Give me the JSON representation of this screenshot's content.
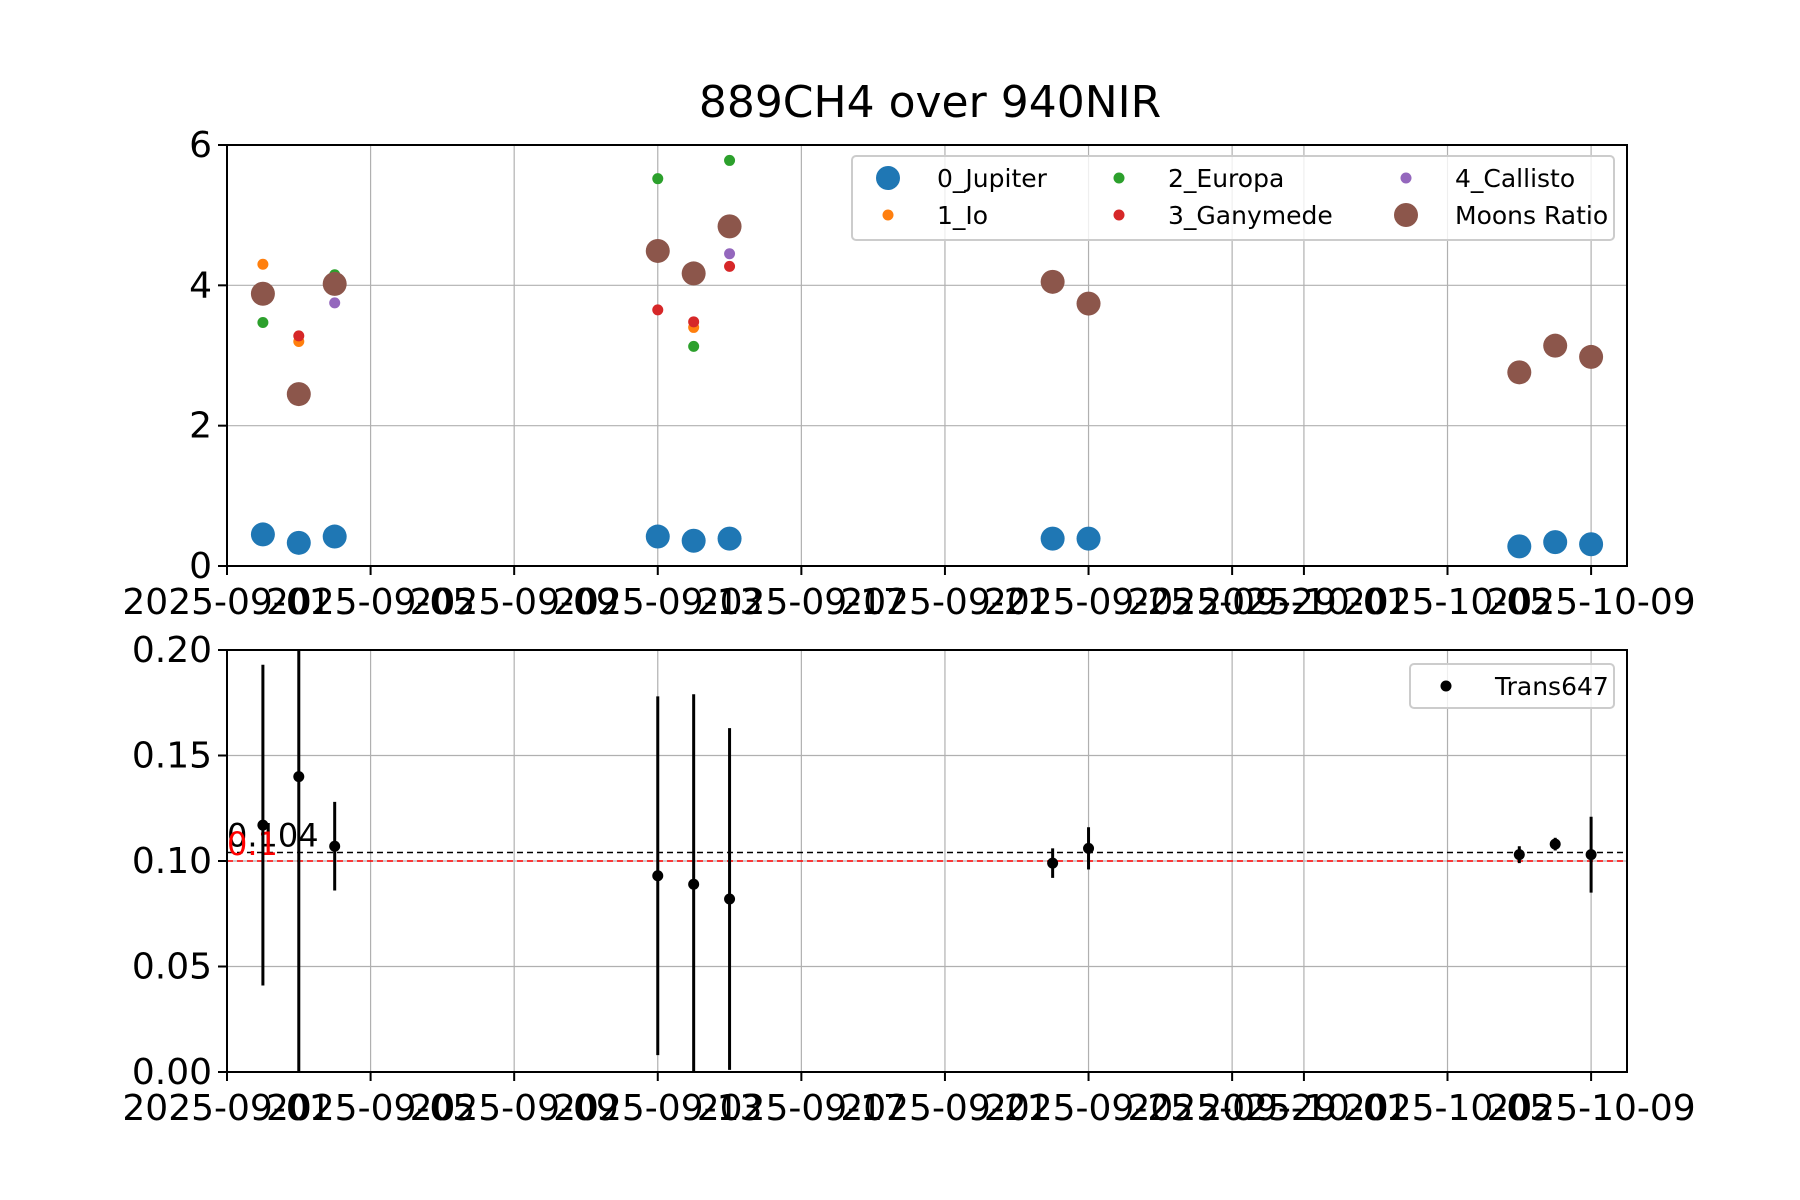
{
  "figure": {
    "title": "889CH4 over 940NIR"
  },
  "chart_data": [
    {
      "type": "scatter",
      "title": "889CH4 over 940NIR",
      "xlabel": "",
      "ylabel": "",
      "x_axis": "date",
      "xlim": [
        "2025-09-01",
        "2025-10-10"
      ],
      "ylim": [
        0,
        6
      ],
      "yticks": [
        0,
        2,
        4,
        6
      ],
      "xticks": [
        "2025-09-01",
        "2025-09-05",
        "2025-09-09",
        "2025-09-13",
        "2025-09-17",
        "2025-09-21",
        "2025-09-25",
        "2025-09-29",
        "2025-10-01",
        "2025-10-05",
        "2025-10-09"
      ],
      "xtick_labels": [
        "2025-09-01",
        "2025-09-05",
        "2025-09-09",
        "2025-09-13",
        "2025-09-17",
        "2025-09-21",
        "2025-09-25",
        "2025-09-29",
        "2025-10-01",
        "2025-10-05",
        "2025-10-09"
      ],
      "grid": true,
      "legend": {
        "location": "upper-right",
        "columns": 3
      },
      "series": [
        {
          "name": "0_Jupiter",
          "color": "#1f77b4",
          "size": "large",
          "x": [
            "2025-09-02",
            "2025-09-03",
            "2025-09-04",
            "2025-09-13",
            "2025-09-14",
            "2025-09-15",
            "2025-09-24",
            "2025-09-25",
            "2025-10-07",
            "2025-10-08",
            "2025-10-09"
          ],
          "y": [
            0.45,
            0.33,
            0.42,
            0.42,
            0.36,
            0.39,
            0.39,
            0.39,
            0.28,
            0.34,
            0.31
          ]
        },
        {
          "name": "1_Io",
          "color": "#ff7f0e",
          "size": "small",
          "x": [
            "2025-09-02",
            "2025-09-03",
            "2025-09-04",
            "2025-09-13",
            "2025-09-14",
            "2025-09-15"
          ],
          "y": [
            4.3,
            3.2,
            4.05,
            4.5,
            3.4,
            4.85
          ]
        },
        {
          "name": "2_Europa",
          "color": "#2ca02c",
          "size": "small",
          "x": [
            "2025-09-02",
            "2025-09-03",
            "2025-09-04",
            "2025-09-13",
            "2025-09-14",
            "2025-09-15"
          ],
          "y": [
            3.47,
            2.45,
            4.15,
            5.52,
            3.13,
            5.78
          ]
        },
        {
          "name": "3_Ganymede",
          "color": "#d62728",
          "size": "small",
          "x": [
            "2025-09-02",
            "2025-09-03",
            "2025-09-04",
            "2025-09-13",
            "2025-09-14",
            "2025-09-15"
          ],
          "y": [
            3.88,
            3.28,
            4.03,
            3.65,
            3.48,
            4.27
          ]
        },
        {
          "name": "4_Callisto",
          "color": "#9467bd",
          "size": "small",
          "x": [
            "2025-09-02",
            "2025-09-03",
            "2025-09-04",
            "2025-09-13",
            "2025-09-14",
            "2025-09-15"
          ],
          "y": [
            3.9,
            2.45,
            3.75,
            4.48,
            4.17,
            4.45
          ]
        },
        {
          "name": "Moons Ratio",
          "color": "#8c564b",
          "size": "large",
          "x": [
            "2025-09-02",
            "2025-09-03",
            "2025-09-04",
            "2025-09-13",
            "2025-09-14",
            "2025-09-15",
            "2025-09-24",
            "2025-09-25",
            "2025-10-07",
            "2025-10-08",
            "2025-10-09"
          ],
          "y": [
            3.88,
            2.45,
            4.02,
            4.49,
            4.17,
            4.84,
            4.05,
            3.74,
            2.76,
            3.14,
            2.98
          ]
        }
      ]
    },
    {
      "type": "scatter",
      "title": "",
      "xlabel": "",
      "ylabel": "",
      "x_axis": "date",
      "xlim": [
        "2025-09-01",
        "2025-10-10"
      ],
      "ylim": [
        0,
        0.2
      ],
      "yticks": [
        0.0,
        0.05,
        0.1,
        0.15,
        0.2
      ],
      "ytick_labels": [
        "0.00",
        "0.05",
        "0.10",
        "0.15",
        "0.20"
      ],
      "xticks": [
        "2025-09-01",
        "2025-09-05",
        "2025-09-09",
        "2025-09-13",
        "2025-09-17",
        "2025-09-21",
        "2025-09-25",
        "2025-09-29",
        "2025-10-01",
        "2025-10-05",
        "2025-10-09"
      ],
      "xtick_labels": [
        "2025-09-01",
        "2025-09-05",
        "2025-09-09",
        "2025-09-13",
        "2025-09-17",
        "2025-09-21",
        "2025-09-25",
        "2025-09-29",
        "2025-10-01",
        "2025-10-05",
        "2025-10-09"
      ],
      "grid": true,
      "legend": {
        "location": "upper-right"
      },
      "series": [
        {
          "name": "Trans647",
          "color": "#000000",
          "x": [
            "2025-09-02",
            "2025-09-03",
            "2025-09-04",
            "2025-09-13",
            "2025-09-14",
            "2025-09-15",
            "2025-09-24",
            "2025-09-25",
            "2025-10-07",
            "2025-10-08",
            "2025-10-09"
          ],
          "y": [
            0.117,
            0.14,
            0.107,
            0.093,
            0.089,
            0.082,
            0.099,
            0.106,
            0.103,
            0.108,
            0.103
          ],
          "yerr": [
            0.076,
            0.14,
            0.021,
            0.085,
            0.09,
            0.081,
            0.007,
            0.01,
            0.004,
            0.003,
            0.018
          ]
        }
      ],
      "reference_lines": [
        {
          "y": 0.104,
          "label": "0.104",
          "color": "#000000",
          "style": "dashed"
        },
        {
          "y": 0.1,
          "label": "0.1",
          "color": "#ff0000",
          "style": "dashed"
        }
      ]
    }
  ]
}
